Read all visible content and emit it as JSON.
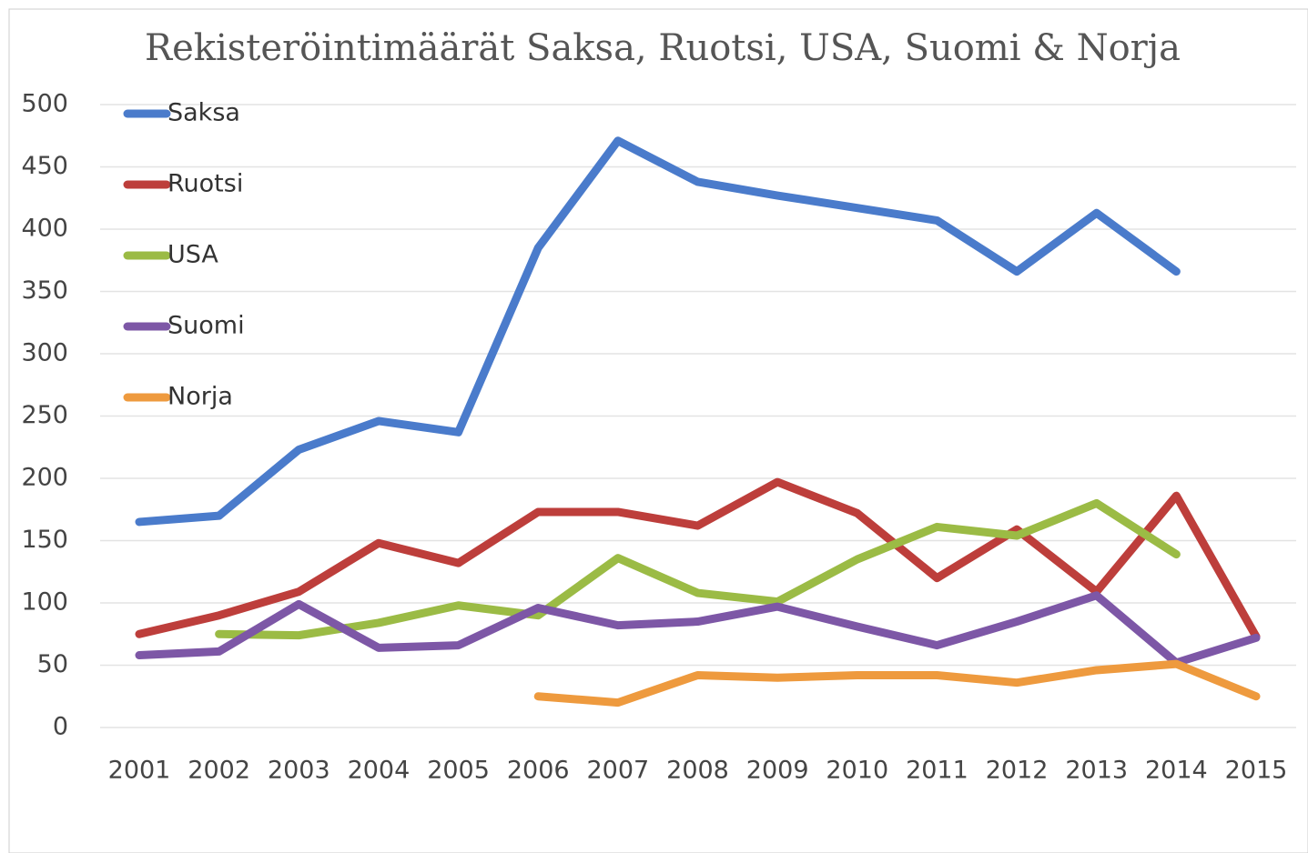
{
  "chart_data": {
    "type": "line",
    "title": "Rekisteröintimäärät Saksa, Ruotsi, USA, Suomi & Norja",
    "categories": [
      "2001",
      "2002",
      "2003",
      "2004",
      "2005",
      "2006",
      "2007",
      "2008",
      "2009",
      "2010",
      "2011",
      "2012",
      "2013",
      "2014",
      "2015"
    ],
    "series": [
      {
        "name": "Saksa",
        "color": "#4a7bcb",
        "values": [
          165,
          170,
          223,
          246,
          237,
          385,
          471,
          438,
          427,
          417,
          407,
          366,
          413,
          366,
          null
        ]
      },
      {
        "name": "Ruotsi",
        "color": "#bd3e3b",
        "values": [
          75,
          90,
          109,
          148,
          132,
          173,
          173,
          162,
          197,
          172,
          120,
          159,
          109,
          186,
          73
        ]
      },
      {
        "name": "USA",
        "color": "#9bbb45",
        "values": [
          null,
          75,
          74,
          84,
          98,
          90,
          136,
          108,
          101,
          135,
          161,
          154,
          180,
          139,
          null
        ]
      },
      {
        "name": "Suomi",
        "color": "#7d57a6",
        "values": [
          58,
          61,
          99,
          64,
          66,
          96,
          82,
          85,
          97,
          81,
          66,
          85,
          106,
          52,
          72
        ]
      },
      {
        "name": "Norja",
        "color": "#ee9a3e",
        "values": [
          null,
          null,
          null,
          null,
          null,
          25,
          20,
          42,
          40,
          42,
          42,
          36,
          46,
          51,
          25
        ]
      }
    ],
    "ylim": [
      0,
      500
    ],
    "yticks": [
      0,
      50,
      100,
      150,
      200,
      250,
      300,
      350,
      400,
      450,
      500
    ],
    "grid": true,
    "legend": "top-left"
  }
}
